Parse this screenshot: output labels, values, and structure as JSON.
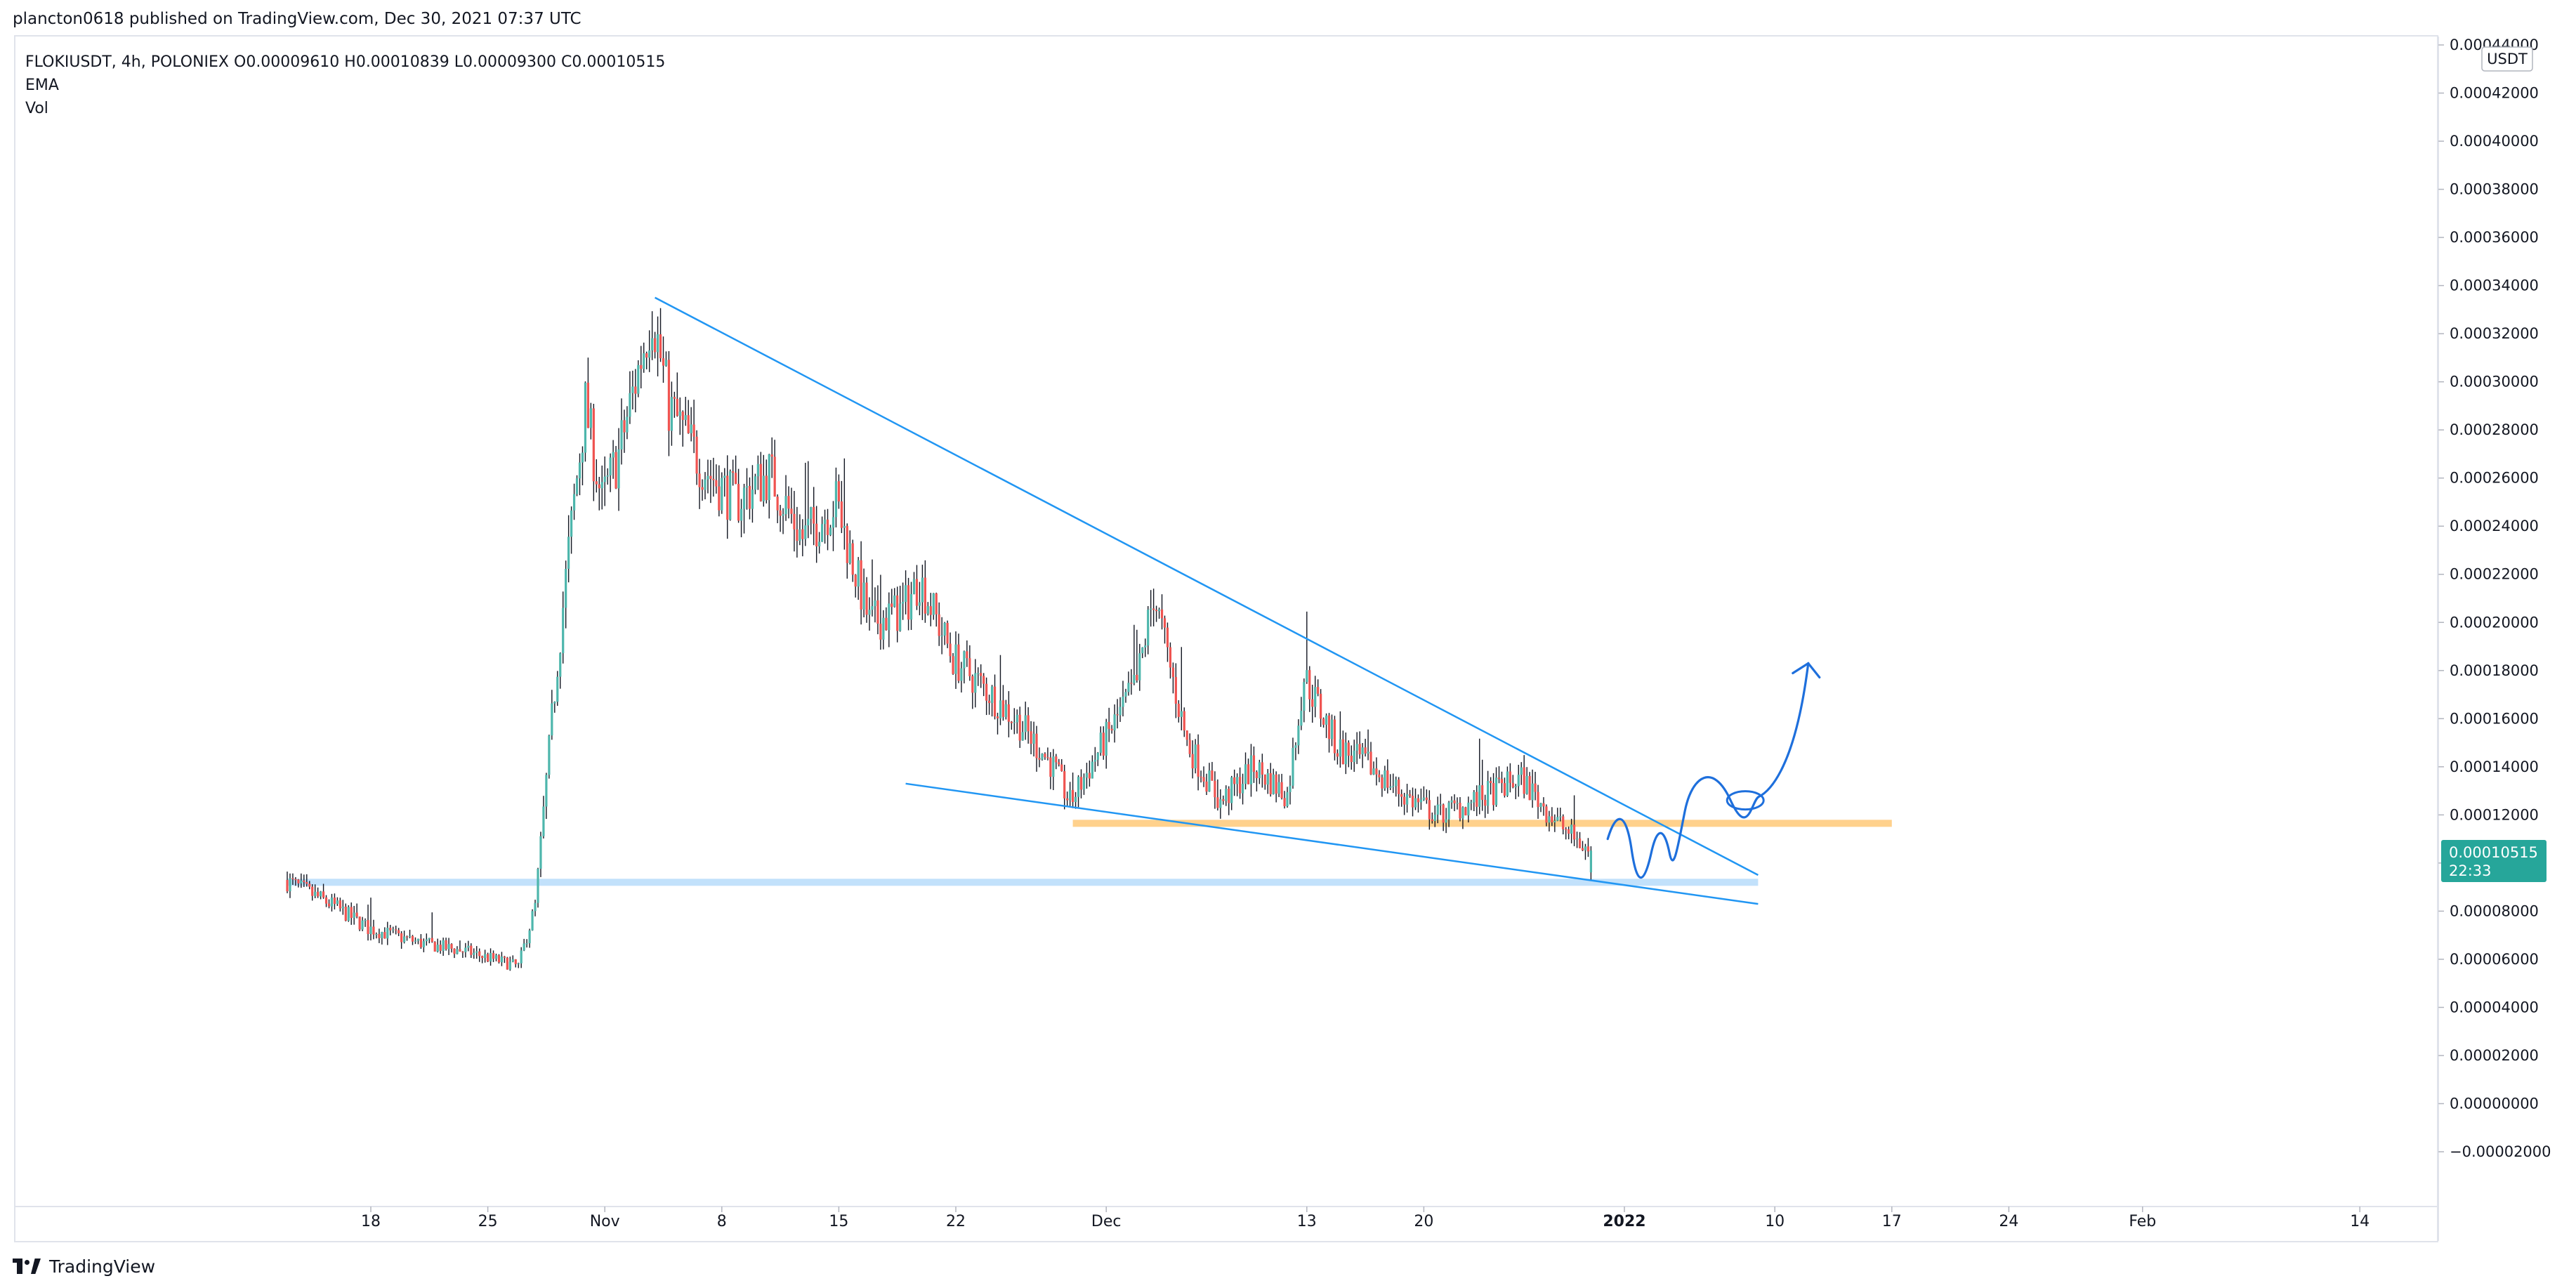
{
  "header": {
    "published": "plancton0618 published on TradingView.com, Dec 30, 2021 07:37 UTC"
  },
  "legend": {
    "symbol_line": "FLOKIUSDT, 4h, POLONIEX  O0.00009610  H0.00010839  L0.00009300  C0.00010515",
    "ema": "EMA",
    "vol": "Vol"
  },
  "currency_label": "USDT",
  "price_badge": {
    "price": "0.00010515",
    "countdown": "22:33",
    "color": "#26a69a"
  },
  "footer": {
    "brand": "TradingView"
  },
  "colors": {
    "up": "#4db6ac",
    "down": "#ef5350",
    "wick": "#131722",
    "trendline": "#2196f3",
    "resistance_zone": "#ffcc80",
    "support_zone": "#bbdefb",
    "drawing": "#1e6fdc"
  },
  "chart_data": {
    "type": "candlestick",
    "symbol": "FLOKIUSDT",
    "timeframe": "4h",
    "exchange": "POLONIEX",
    "ohlc_last": {
      "open": 9.61e-05,
      "high": 0.00010839,
      "low": 9.3e-05,
      "close": 0.00010515
    },
    "y_axis": {
      "ticks": [
        "0.00044000",
        "0.00042000",
        "0.00040000",
        "0.00038000",
        "0.00036000",
        "0.00034000",
        "0.00032000",
        "0.00030000",
        "0.00028000",
        "0.00026000",
        "0.00024000",
        "0.00022000",
        "0.00020000",
        "0.00018000",
        "0.00016000",
        "0.00014000",
        "0.00012000",
        "0.00010000",
        "0.00008000",
        "0.00006000",
        "0.00004000",
        "0.00002000",
        "0.00000000",
        "−0.00002000"
      ],
      "range": [
        -2e-05,
        0.00044
      ]
    },
    "x_axis": {
      "ticks": [
        {
          "label": "18",
          "bold": false
        },
        {
          "label": "25",
          "bold": false
        },
        {
          "label": "Nov",
          "bold": false
        },
        {
          "label": "8",
          "bold": false
        },
        {
          "label": "15",
          "bold": false
        },
        {
          "label": "22",
          "bold": false
        },
        {
          "label": "Dec",
          "bold": false
        },
        {
          "label": "13",
          "bold": false
        },
        {
          "label": "20",
          "bold": false
        },
        {
          "label": "2022",
          "bold": true
        },
        {
          "label": "10",
          "bold": false
        },
        {
          "label": "17",
          "bold": false
        },
        {
          "label": "24",
          "bold": false
        },
        {
          "label": "Feb",
          "bold": false
        },
        {
          "label": "14",
          "bold": false
        }
      ]
    },
    "price_path": [
      [
        "2021-10-13",
        9.3e-05
      ],
      [
        "2021-10-16",
        8.2e-05
      ],
      [
        "2021-10-18",
        7.3e-05
      ],
      [
        "2021-10-21",
        6.7e-05
      ],
      [
        "2021-10-24",
        6.3e-05
      ],
      [
        "2021-10-27",
        5.7e-05
      ],
      [
        "2021-10-28",
        8.2e-05
      ],
      [
        "2021-10-29",
        0.00016
      ],
      [
        "2021-10-30",
        0.00023
      ],
      [
        "2021-10-31",
        0.00029
      ],
      [
        "2021-11-01",
        0.00025
      ],
      [
        "2021-11-02",
        0.00027
      ],
      [
        "2021-11-03",
        0.0003
      ],
      [
        "2021-11-04",
        0.00033
      ],
      [
        "2021-11-05",
        0.00029
      ],
      [
        "2021-11-07",
        0.000265
      ],
      [
        "2021-11-09",
        0.00025
      ],
      [
        "2021-11-11",
        0.000262
      ],
      [
        "2021-11-13",
        0.000235
      ],
      [
        "2021-11-15",
        0.00025
      ],
      [
        "2021-11-17",
        0.0002
      ],
      [
        "2021-11-19",
        0.000205
      ],
      [
        "2021-11-20",
        0.000218
      ],
      [
        "2021-11-22",
        0.000185
      ],
      [
        "2021-11-24",
        0.000172
      ],
      [
        "2021-11-26",
        0.000158
      ],
      [
        "2021-11-28",
        0.00014
      ],
      [
        "2021-11-29",
        0.000125
      ],
      [
        "2021-12-01",
        0.00015
      ],
      [
        "2021-12-03",
        0.000175
      ],
      [
        "2021-12-04",
        0.000212
      ],
      [
        "2021-12-06",
        0.00015
      ],
      [
        "2021-12-08",
        0.000125
      ],
      [
        "2021-12-10",
        0.00014
      ],
      [
        "2021-12-12",
        0.000128
      ],
      [
        "2021-12-13",
        0.000178
      ],
      [
        "2021-12-15",
        0.000148
      ],
      [
        "2021-12-17",
        0.00014
      ],
      [
        "2021-12-19",
        0.000128
      ],
      [
        "2021-12-21",
        0.00012
      ],
      [
        "2021-12-23",
        0.000125
      ],
      [
        "2021-12-25",
        0.000132
      ],
      [
        "2021-12-26",
        0.000135
      ],
      [
        "2021-12-28",
        0.000118
      ],
      [
        "2021-12-30",
        0.000105
      ]
    ],
    "annotations": [
      {
        "type": "trendline",
        "from": [
          "2021-11-04",
          0.000335
        ],
        "to": [
          "2022-01-09",
          9.5e-05
        ]
      },
      {
        "type": "trendline",
        "from": [
          "2021-11-19",
          0.000133
        ],
        "to": [
          "2022-01-09",
          8.3e-05
        ]
      },
      {
        "type": "horizontal_zone",
        "color": "resistance",
        "price": 0.0001165,
        "from": "2021-11-29",
        "to": "2022-01-17"
      },
      {
        "type": "horizontal_zone",
        "color": "support",
        "price": 9.2e-05,
        "from": "2021-10-13",
        "to": "2022-01-09"
      },
      {
        "type": "freehand_projection",
        "direction": "up",
        "from": [
          "2021-12-31",
          0.00011
        ],
        "to": [
          "2022-01-12",
          0.000183
        ]
      }
    ]
  }
}
